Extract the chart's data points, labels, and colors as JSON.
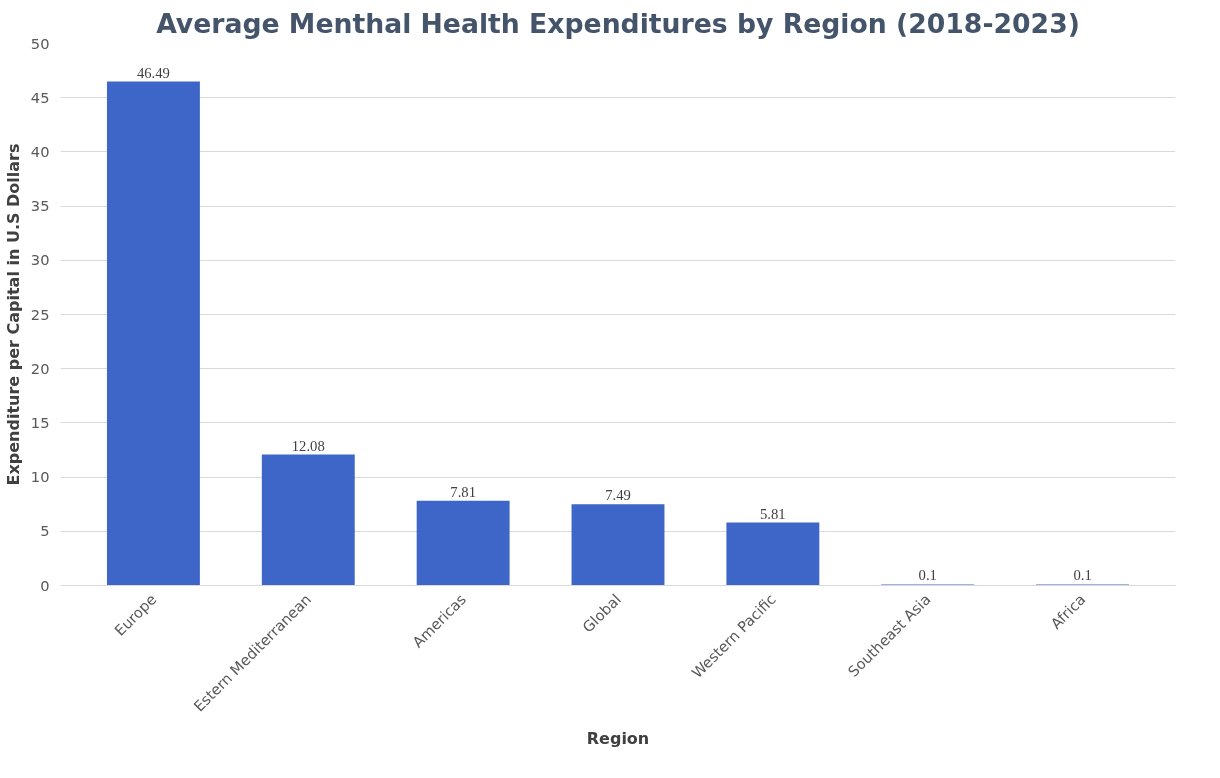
{
  "chart_data": {
    "type": "bar",
    "title": "Average Menthal Health Expenditures by Region (2018-2023)",
    "xlabel": "Region",
    "ylabel": "Expenditure per Capital in U.S Dollars",
    "categories": [
      "Europe",
      "Estern Mediterranean",
      "Americas",
      "Global",
      "Western Pacific",
      "Southeast Asia",
      "Africa"
    ],
    "values": [
      46.49,
      12.08,
      7.81,
      7.49,
      5.81,
      0.1,
      0.1
    ],
    "color": "#3d66c8",
    "ylim": [
      0,
      50
    ],
    "yticks": [
      0,
      5,
      10,
      15,
      20,
      25,
      30,
      35,
      40,
      45,
      50
    ],
    "grid": "y",
    "data_labels": true
  }
}
